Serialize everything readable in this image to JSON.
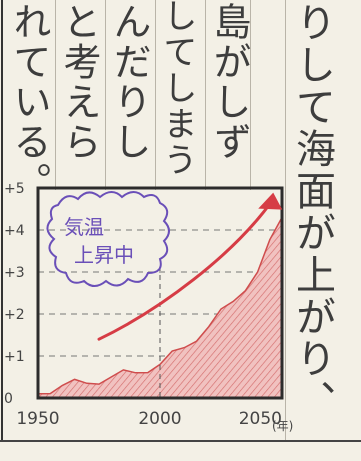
{
  "essay": {
    "columns": [
      "れている。",
      "と考えら",
      "んだりし",
      "してしまう",
      "島がしず",
      "りして海面が上がり、"
    ]
  },
  "chart_data": {
    "type": "area",
    "title": "",
    "annotation": "気温上昇中",
    "annotation_lines": [
      "気温",
      "上昇中"
    ],
    "x_unit": "(年)",
    "xlabel": "",
    "ylabel": "",
    "xlim": [
      1950,
      2050
    ],
    "ylim": [
      0,
      5
    ],
    "x_ticks": [
      "1950",
      "2000",
      "2050"
    ],
    "y_ticks": [
      "0",
      "+1",
      "+2",
      "+3",
      "+4",
      "+5"
    ],
    "grid": true,
    "series": [
      {
        "x": [
          1950,
          1960,
          1970,
          1980,
          1990,
          2000,
          2010,
          2020,
          2030,
          2040,
          2050
        ],
        "values": [
          0.1,
          0.3,
          0.35,
          0.5,
          0.6,
          0.8,
          1.2,
          1.7,
          2.3,
          3.0,
          4.3
        ]
      }
    ],
    "trend_arrow": {
      "x": [
        1975,
        2000,
        2030,
        2046
      ],
      "values": [
        1.4,
        2.1,
        3.4,
        4.7
      ]
    },
    "colors": {
      "area": "#e79a9a",
      "area_edge": "#cf4d4d",
      "arrow": "#d63c45",
      "bubble": "#6a4fb8",
      "frame": "#2c2c2c"
    }
  }
}
